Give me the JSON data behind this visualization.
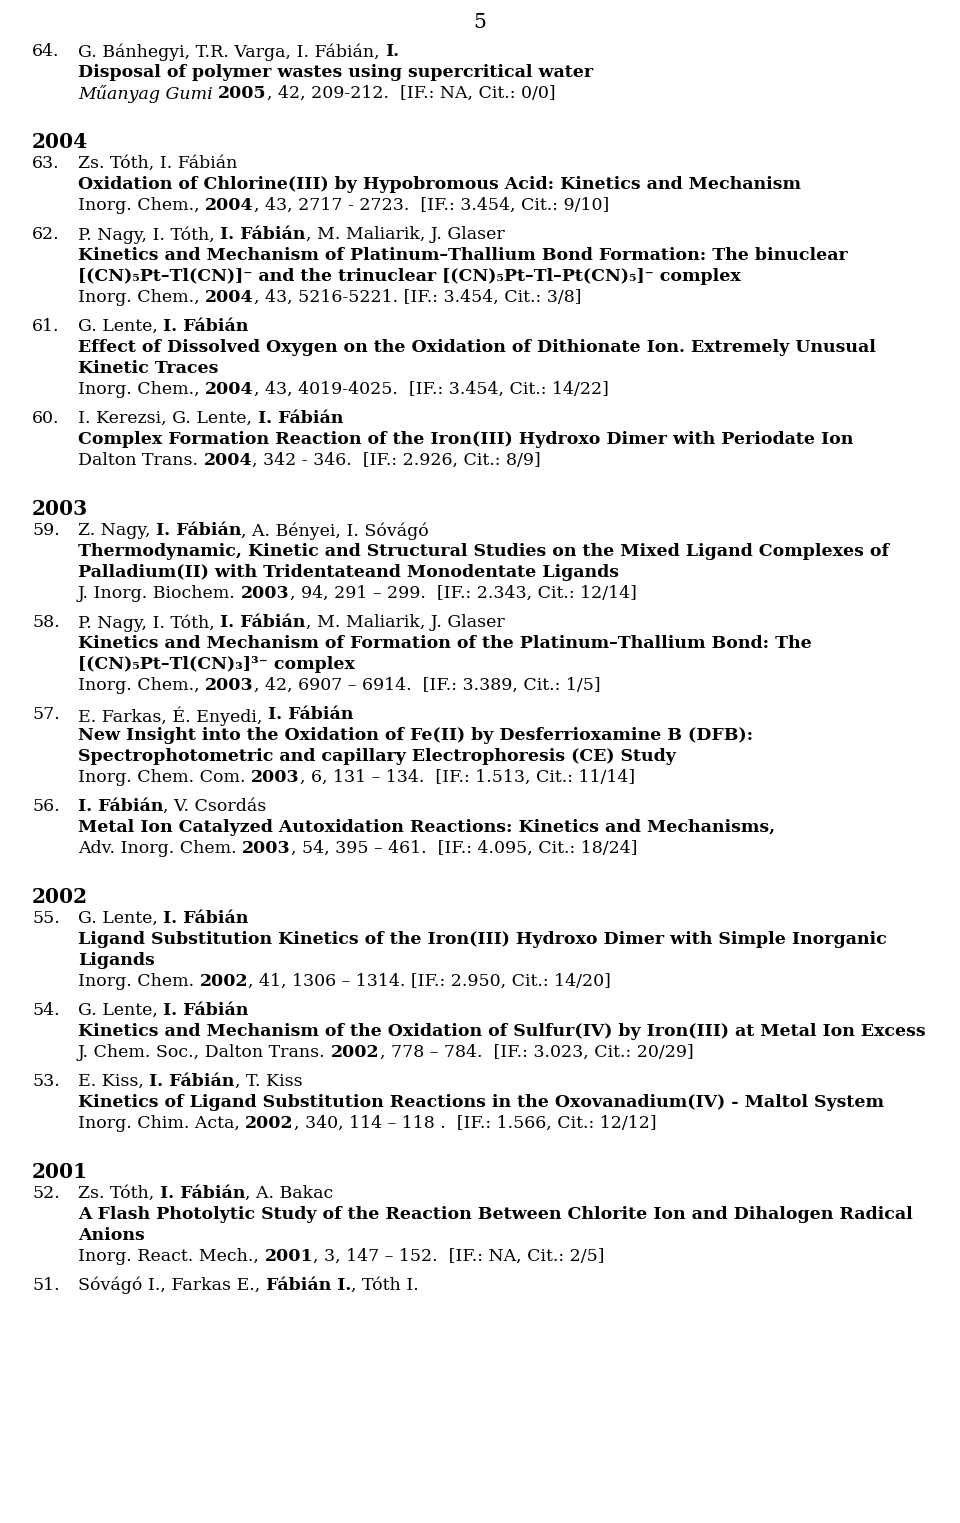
{
  "page_number": "5",
  "bg": "#ffffff",
  "fg": "#000000",
  "sections": [
    {
      "type": "entry",
      "number": "64.",
      "authors": [
        {
          "text": "G. Bánhegyi, T.R. Varga, I. Fábián, ",
          "bold": false
        },
        {
          "text": "I.",
          "bold": true
        }
      ],
      "title": "Disposal of polymer wastes using supercritical water",
      "journal": [
        {
          "text": "Műanyag Gumi ",
          "bold": false,
          "italic": true
        },
        {
          "text": "2005",
          "bold": true
        },
        {
          "text": ", 42, 209-212.  [IF.: NA, Cit.: 0/0]",
          "bold": false
        }
      ]
    },
    {
      "type": "year",
      "text": "2004"
    },
    {
      "type": "entry",
      "number": "63.",
      "authors": [
        {
          "text": "Zs. Tóth, I. Fábián",
          "bold": false
        }
      ],
      "title": "Oxidation of Chlorine(III) by Hypobromous Acid: Kinetics and Mechanism",
      "journal": [
        {
          "text": "Inorg. Chem., ",
          "bold": false
        },
        {
          "text": "2004",
          "bold": true
        },
        {
          "text": ", 43, 2717 - 2723.  [IF.: 3.454, Cit.: 9/10]",
          "bold": false
        }
      ]
    },
    {
      "type": "entry",
      "number": "62.",
      "authors": [
        {
          "text": "P. Nagy, I. Tóth, ",
          "bold": false
        },
        {
          "text": "I. Fábián",
          "bold": true
        },
        {
          "text": ", M. Maliarik, J. Glaser",
          "bold": false
        }
      ],
      "title": "Kinetics and Mechanism of Platinum–Thallium Bond Formation: The binuclear [(CN)₅Pt–Tl(CN)]⁻ and the trinuclear [(CN)₅Pt–Tl–Pt(CN)₅]⁻ complex",
      "journal": [
        {
          "text": "Inorg. Chem., ",
          "bold": false
        },
        {
          "text": "2004",
          "bold": true
        },
        {
          "text": ", 43, 5216-5221. [IF.: 3.454, Cit.: 3/8]",
          "bold": false
        }
      ]
    },
    {
      "type": "entry",
      "number": "61.",
      "authors": [
        {
          "text": "G. Lente, ",
          "bold": false
        },
        {
          "text": "I. Fábián",
          "bold": true
        }
      ],
      "title": "Effect of Dissolved Oxygen on the Oxidation of Dithionate Ion.  Extremely Unusual Kinetic Traces",
      "journal": [
        {
          "text": "Inorg. Chem., ",
          "bold": false
        },
        {
          "text": "2004",
          "bold": true
        },
        {
          "text": ", 43, 4019-4025.  [IF.: 3.454, Cit.: 14/22]",
          "bold": false
        }
      ]
    },
    {
      "type": "entry",
      "number": "60.",
      "authors": [
        {
          "text": "I. Kerezsi, G. Lente, ",
          "bold": false
        },
        {
          "text": "I. Fábián",
          "bold": true
        }
      ],
      "title": "Complex Formation Reaction of the Iron(III) Hydroxo Dimer with Periodate Ion",
      "journal": [
        {
          "text": "Dalton Trans. ",
          "bold": false
        },
        {
          "text": "2004",
          "bold": true
        },
        {
          "text": ", 342 - 346.  [IF.: 2.926, Cit.: 8/9]",
          "bold": false
        }
      ]
    },
    {
      "type": "year",
      "text": "2003"
    },
    {
      "type": "entry",
      "number": "59.",
      "authors": [
        {
          "text": "Z. Nagy, ",
          "bold": false
        },
        {
          "text": "I. Fábián",
          "bold": true
        },
        {
          "text": ", A. Bényei, I. Sóvágó",
          "bold": false
        }
      ],
      "title": "Thermodynamic, Kinetic and Structural Studies on the Mixed Ligand Complexes of Palladium(II) with Tridentateand Monodentate Ligands",
      "journal": [
        {
          "text": "J. Inorg. Biochem. ",
          "bold": false
        },
        {
          "text": "2003",
          "bold": true
        },
        {
          "text": ", 94, 291 – 299.  [IF.: 2.343, Cit.: 12/14]",
          "bold": false
        }
      ]
    },
    {
      "type": "entry",
      "number": "58.",
      "authors": [
        {
          "text": "P. Nagy, I. Tóth, ",
          "bold": false
        },
        {
          "text": "I. Fábián",
          "bold": true
        },
        {
          "text": ", M. Maliarik, J. Glaser",
          "bold": false
        }
      ],
      "title": "Kinetics and Mechanism of Formation of the Platinum–Thallium Bond: The [(CN)₅Pt–Tl(CN)₃]³⁻ complex",
      "journal": [
        {
          "text": "Inorg. Chem., ",
          "bold": false
        },
        {
          "text": "2003",
          "bold": true
        },
        {
          "text": ", 42, 6907 – 6914.  [IF.: 3.389, Cit.: 1/5]",
          "bold": false
        }
      ]
    },
    {
      "type": "entry",
      "number": "57.",
      "authors": [
        {
          "text": "E. Farkas, É. Enyedi, ",
          "bold": false
        },
        {
          "text": "I. Fábián",
          "bold": true
        }
      ],
      "title": "New Insight into the Oxidation of Fe(II) by Desferrioxamine B (DFB): Spectrophotometric and capillary Electrophoresis (CE) Study",
      "journal": [
        {
          "text": "Inorg. Chem. Com. ",
          "bold": false
        },
        {
          "text": "2003",
          "bold": true
        },
        {
          "text": ", 6, 131 – 134.  [IF.: 1.513, Cit.: 11/14]",
          "bold": false
        }
      ]
    },
    {
      "type": "entry",
      "number": "56.",
      "authors": [
        {
          "text": "I. Fábián",
          "bold": true
        },
        {
          "text": ", V. Csordás",
          "bold": false
        }
      ],
      "title": "Metal Ion Catalyzed Autoxidation Reactions: Kinetics and Mechanisms,",
      "journal": [
        {
          "text": "Adv. Inorg. Chem. ",
          "bold": false
        },
        {
          "text": "2003",
          "bold": true
        },
        {
          "text": ", 54, 395 – 461.  [IF.: 4.095, Cit.: 18/24]",
          "bold": false
        }
      ]
    },
    {
      "type": "year",
      "text": "2002"
    },
    {
      "type": "entry",
      "number": "55.",
      "authors": [
        {
          "text": "G. Lente, ",
          "bold": false
        },
        {
          "text": "I. Fábián",
          "bold": true
        }
      ],
      "title": "Ligand Substitution Kinetics of the Iron(III) Hydroxo Dimer with Simple Inorganic Ligands",
      "journal": [
        {
          "text": "Inorg. Chem. ",
          "bold": false
        },
        {
          "text": "2002",
          "bold": true
        },
        {
          "text": ", 41, 1306 – 1314. [IF.: 2.950, Cit.: 14/20]",
          "bold": false
        }
      ]
    },
    {
      "type": "entry",
      "number": "54.",
      "authors": [
        {
          "text": "G. Lente, ",
          "bold": false
        },
        {
          "text": "I. Fábián",
          "bold": true
        }
      ],
      "title": "Kinetics and Mechanism of the Oxidation of Sulfur(IV) by Iron(III) at Metal Ion Excess",
      "journal": [
        {
          "text": "J. Chem. Soc., Dalton Trans. ",
          "bold": false
        },
        {
          "text": "2002",
          "bold": true
        },
        {
          "text": ", 778 – 784.  [IF.: 3.023, Cit.: 20/29]",
          "bold": false
        }
      ]
    },
    {
      "type": "entry",
      "number": "53.",
      "authors": [
        {
          "text": "E. Kiss, ",
          "bold": false
        },
        {
          "text": "I. Fábián",
          "bold": true
        },
        {
          "text": ", T. Kiss",
          "bold": false
        }
      ],
      "title": "Kinetics of Ligand Substitution Reactions in the Oxovanadium(IV) - Maltol System",
      "journal": [
        {
          "text": "Inorg. Chim. Acta, ",
          "bold": false
        },
        {
          "text": "2002",
          "bold": true
        },
        {
          "text": ", 340, 114 – 118 .  [IF.: 1.566, Cit.: 12/12]",
          "bold": false
        }
      ]
    },
    {
      "type": "year",
      "text": "2001"
    },
    {
      "type": "entry",
      "number": "52.",
      "authors": [
        {
          "text": "Zs. Tóth, ",
          "bold": false
        },
        {
          "text": "I. Fábián",
          "bold": true
        },
        {
          "text": ", A. Bakac",
          "bold": false
        }
      ],
      "title": "A Flash Photolytic Study of the Reaction Between Chlorite Ion and Dihalogen Radical Anions",
      "journal": [
        {
          "text": "Inorg. React. Mech., ",
          "bold": false
        },
        {
          "text": "2001",
          "bold": true
        },
        {
          "text": ", 3, 147 – 152.  [IF.: NA, Cit.: 2/5]",
          "bold": false
        }
      ]
    },
    {
      "type": "entry",
      "number": "51.",
      "authors": [
        {
          "text": "Sóvágó I., Farkas E., ",
          "bold": false
        },
        {
          "text": "Fábián I.",
          "bold": true
        },
        {
          "text": ", Tóth I.",
          "bold": false
        }
      ],
      "title": null,
      "journal": []
    }
  ]
}
